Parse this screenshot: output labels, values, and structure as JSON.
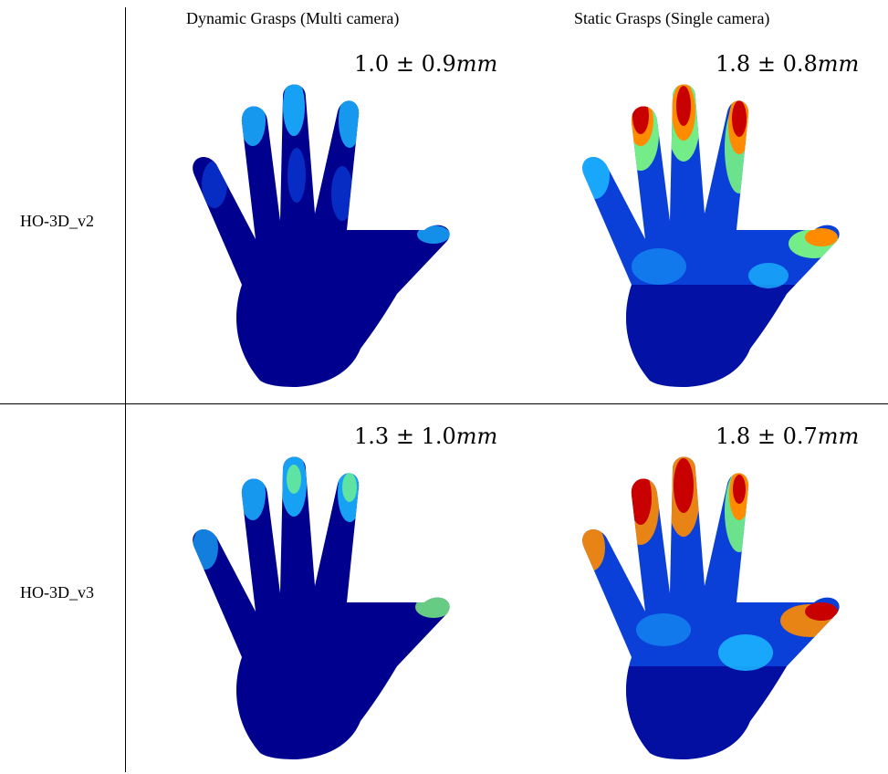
{
  "columns": [
    {
      "title": "Dynamic Grasps (Multi camera)"
    },
    {
      "title": "Static Grasps (Single camera)"
    }
  ],
  "rows": [
    {
      "label": "HO-3D_v2",
      "cells": [
        {
          "value": "1.0",
          "error": "0.9",
          "unit": "mm"
        },
        {
          "value": "1.8",
          "error": "0.8",
          "unit": "mm"
        }
      ]
    },
    {
      "label": "HO-3D_v3",
      "cells": [
        {
          "value": "1.3",
          "error": "1.0",
          "unit": "mm"
        },
        {
          "value": "1.8",
          "error": "0.7",
          "unit": "mm"
        }
      ]
    }
  ],
  "colors": {
    "low": "#00008f",
    "mid_low": "#0a3fd8",
    "mid": "#19b3ff",
    "mid_high": "#7fff7f",
    "high": "#ff8c00",
    "max": "#c80000"
  },
  "glyphs": {
    "plus_minus": "±"
  }
}
